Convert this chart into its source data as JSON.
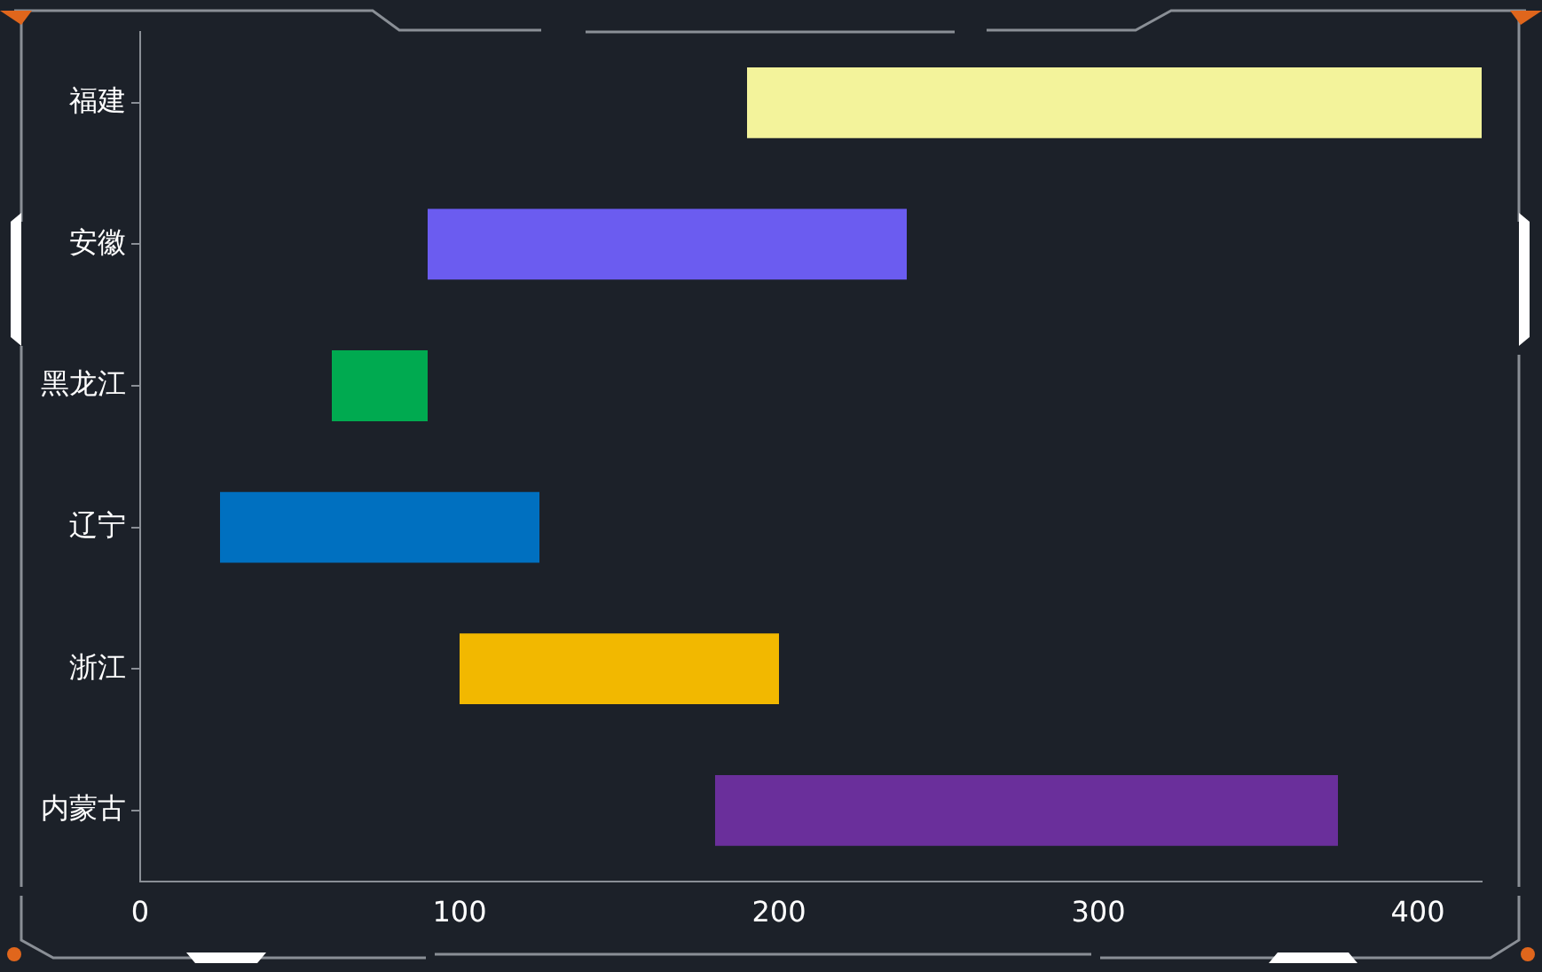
{
  "chart_data": {
    "type": "bar",
    "orientation": "horizontal",
    "categories": [
      "福建",
      "安徽",
      "黑龙江",
      "辽宁",
      "浙江",
      "内蒙古"
    ],
    "base": [
      190,
      90,
      60,
      25,
      100,
      180
    ],
    "values": [
      230,
      150,
      30,
      100,
      100,
      195
    ],
    "colors": [
      "#f3f39b",
      "#6b5cf0",
      "#00aa50",
      "#0070c0",
      "#f2b800",
      "#6a2f9b"
    ],
    "xlim": [
      0,
      420
    ],
    "xticks": [
      0,
      100,
      200,
      300,
      400
    ],
    "grid": false,
    "legend": false
  }
}
